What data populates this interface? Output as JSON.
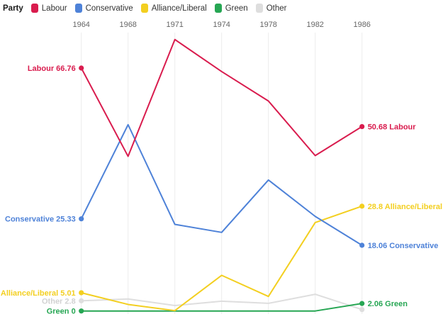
{
  "legend": {
    "title": "Party",
    "items": [
      {
        "label": "Labour",
        "color": "#d91c4e"
      },
      {
        "label": "Conservative",
        "color": "#4e82d8"
      },
      {
        "label": "Alliance/Liberal",
        "color": "#f3cf20"
      },
      {
        "label": "Green",
        "color": "#26a653"
      },
      {
        "label": "Other",
        "color": "#dedede"
      }
    ]
  },
  "chart_data": {
    "type": "line",
    "title": "",
    "xlabel": "",
    "ylabel": "",
    "x": [
      1964,
      1968,
      1971,
      1974,
      1978,
      1982,
      1986
    ],
    "x_axis_position": "top",
    "grid": "vertical-only",
    "legend_position": "top-left",
    "ylim": [
      0,
      78
    ],
    "series": [
      {
        "name": "Labour",
        "color": "#d91c4e",
        "values": [
          66.76,
          42.5,
          74.6,
          65.8,
          57.7,
          42.7,
          50.68
        ],
        "start_label": "Labour 66.76",
        "end_label": "50.68 Labour"
      },
      {
        "name": "Conservative",
        "color": "#4e82d8",
        "values": [
          25.33,
          51.2,
          23.8,
          21.6,
          36.0,
          26.0,
          18.06
        ],
        "start_label": "Conservative 25.33",
        "end_label": "18.06 Conservative"
      },
      {
        "name": "Alliance/Liberal",
        "color": "#f3cf20",
        "values": [
          5.01,
          1.8,
          0.1,
          9.8,
          4.0,
          24.3,
          28.8
        ],
        "start_label": "Alliance/Liberal 5.01",
        "end_label": "28.8 Alliance/Liberal"
      },
      {
        "name": "Green",
        "color": "#26a653",
        "values": [
          0,
          0,
          0,
          0,
          0,
          0,
          2.06
        ],
        "start_label": "Green 0",
        "end_label": "2.06 Green"
      },
      {
        "name": "Other",
        "color": "#dedede",
        "values": [
          2.8,
          3.3,
          1.5,
          2.7,
          2.1,
          4.6,
          0.4
        ],
        "start_label": "Other 2.8",
        "end_label": "",
        "label_color": "#d2d2d2"
      }
    ]
  }
}
